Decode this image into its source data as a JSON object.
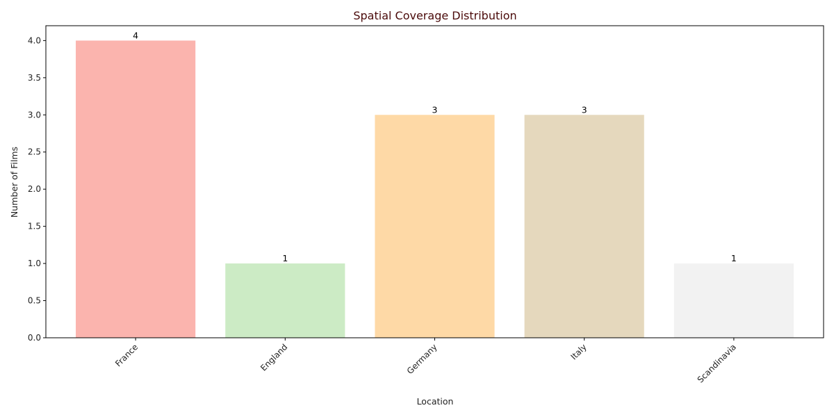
{
  "chart_data": {
    "type": "bar",
    "title": "Spatial Coverage Distribution",
    "xlabel": "Location",
    "ylabel": "Number of Films",
    "categories": [
      "France",
      "England",
      "Germany",
      "Italy",
      "Scandinavia"
    ],
    "values": [
      4,
      1,
      3,
      3,
      1
    ],
    "data_labels": [
      "4",
      "1",
      "3",
      "3",
      "1"
    ],
    "colors": [
      "#fbb4ae",
      "#ccebc5",
      "#fed9a6",
      "#e5d8bd",
      "#f2f2f2"
    ],
    "ylim": [
      0,
      4.2
    ],
    "yticks": [
      0.0,
      0.5,
      1.0,
      1.5,
      2.0,
      2.5,
      3.0,
      3.5,
      4.0
    ],
    "ytick_labels": [
      "0.0",
      "0.5",
      "1.0",
      "1.5",
      "2.0",
      "2.5",
      "3.0",
      "3.5",
      "4.0"
    ],
    "grid": false,
    "title_color": "#4a0a0a"
  }
}
